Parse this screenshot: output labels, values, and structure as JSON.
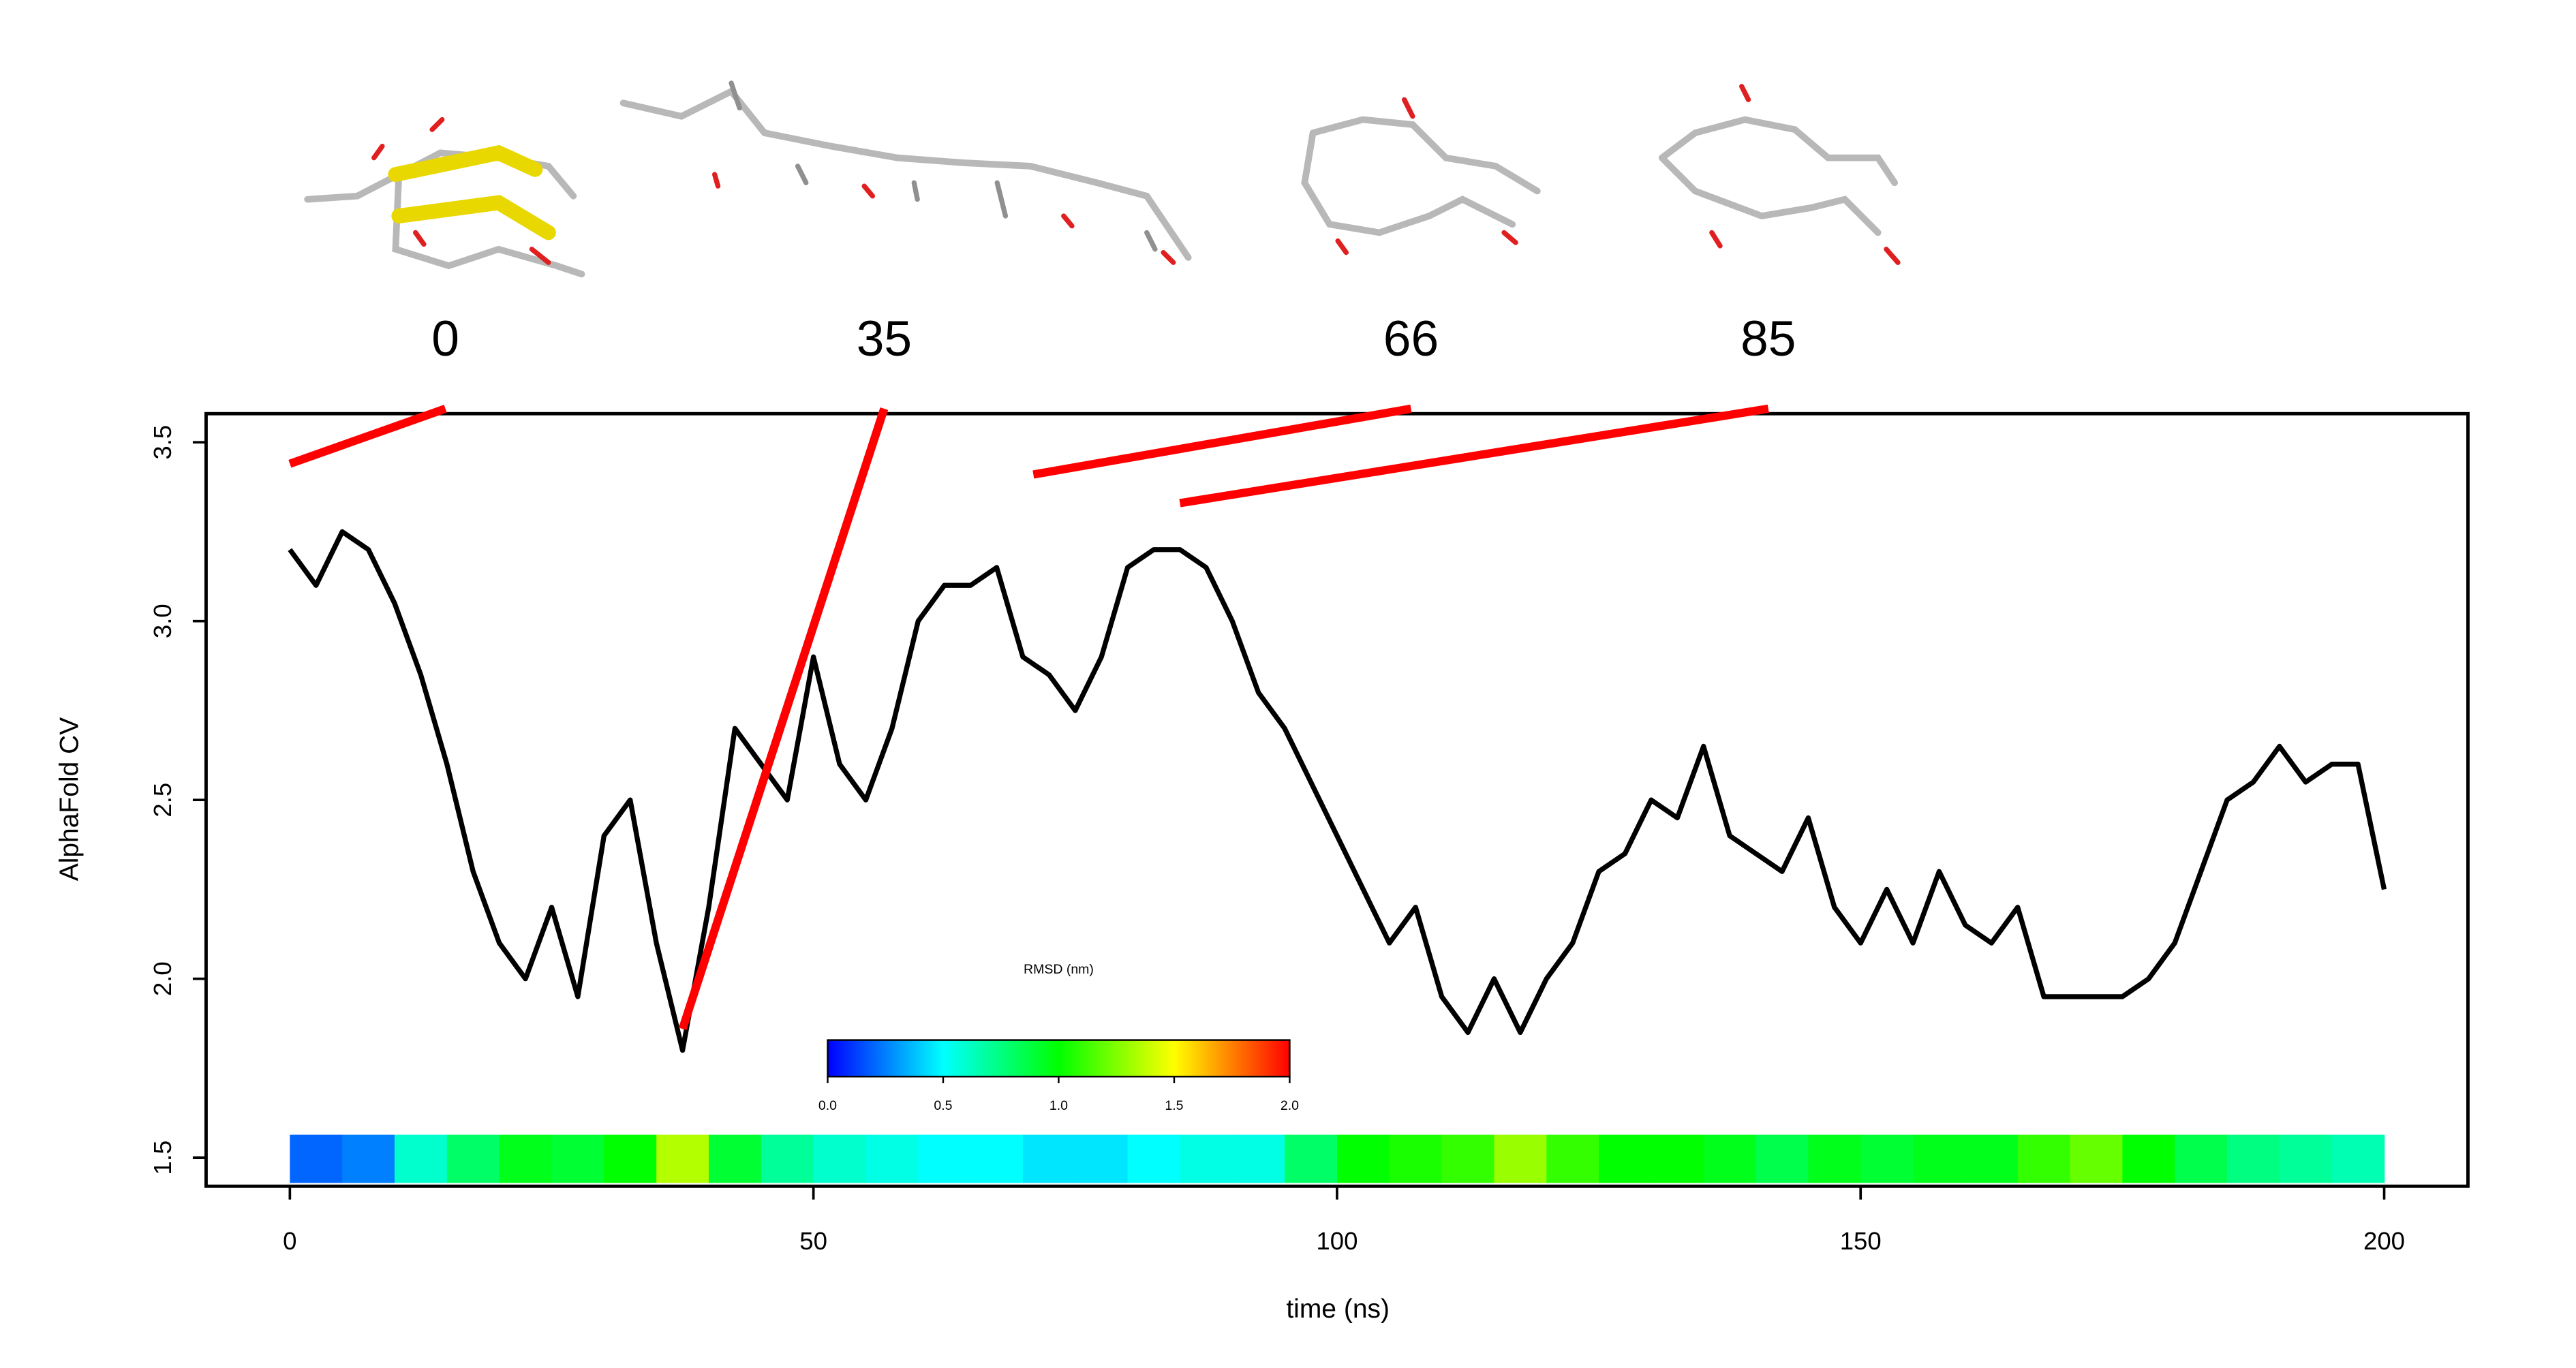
{
  "chart_data": {
    "type": "line",
    "x_label": "time (ns)",
    "y_label": "AlphaFold CV",
    "xlim": [
      -8,
      208
    ],
    "ylim": [
      1.42,
      3.58
    ],
    "xticks": [
      0,
      50,
      100,
      150,
      200
    ],
    "yticks": [
      {
        "value": 1.5,
        "label": "1.5"
      },
      {
        "value": 2.0,
        "label": "2.0"
      },
      {
        "value": 2.5,
        "label": "2.5"
      },
      {
        "value": 3.0,
        "label": "3.0"
      },
      3.5
    ],
    "x": [
      0,
      2.5,
      5,
      7.5,
      10,
      12.5,
      15,
      17.5,
      20,
      22.5,
      25,
      27.5,
      30,
      32.5,
      35,
      37.5,
      40,
      42.5,
      45,
      47.5,
      50,
      52.5,
      55,
      57.5,
      60,
      62.5,
      65,
      67.5,
      70,
      72.5,
      75,
      77.5,
      80,
      82.5,
      85,
      87.5,
      90,
      92.5,
      95,
      97.5,
      100,
      102.5,
      105,
      107.5,
      110,
      112.5,
      115,
      117.5,
      120,
      122.5,
      125,
      127.5,
      130,
      132.5,
      135,
      137.5,
      140,
      142.5,
      145,
      147.5,
      150,
      152.5,
      155,
      157.5,
      160,
      162.5,
      165,
      167.5,
      170,
      172.5,
      175,
      177.5,
      180,
      182.5,
      185,
      187.5,
      190,
      192.5,
      195,
      197.5,
      200
    ],
    "series": [
      {
        "color": "#000000",
        "values": [
          3.2,
          3.1,
          3.25,
          3.2,
          3.05,
          2.85,
          2.6,
          2.3,
          2.1,
          2.0,
          2.2,
          1.95,
          2.4,
          2.5,
          2.1,
          1.8,
          2.2,
          2.7,
          2.6,
          2.5,
          2.9,
          2.6,
          2.5,
          2.7,
          3.0,
          3.1,
          3.1,
          3.15,
          2.9,
          2.85,
          2.75,
          2.9,
          3.15,
          3.2,
          3.2,
          3.15,
          3.0,
          2.8,
          2.7,
          2.55,
          2.4,
          2.25,
          2.1,
          2.2,
          1.95,
          1.85,
          2.0,
          1.85,
          2.0,
          2.1,
          2.3,
          2.35,
          2.5,
          2.45,
          2.65,
          2.4,
          2.35,
          2.3,
          2.45,
          2.2,
          2.1,
          2.25,
          2.1,
          2.3,
          2.15,
          2.1,
          2.2,
          1.95,
          1.95,
          1.95,
          1.95,
          2.0,
          2.1,
          2.3,
          2.5,
          2.55,
          2.65,
          2.55,
          2.6,
          2.6,
          2.25
        ]
      }
    ],
    "rmsd_strip": {
      "bins": [
        0,
        5,
        10,
        15,
        20,
        25,
        30,
        35,
        40,
        45,
        50,
        55,
        60,
        65,
        70,
        75,
        80,
        85,
        90,
        95,
        100,
        105,
        110,
        115,
        120,
        125,
        130,
        135,
        140,
        145,
        150,
        155,
        160,
        165,
        170,
        175,
        180,
        185,
        190,
        195,
        200
      ],
      "values": [
        0.2,
        0.25,
        0.6,
        0.8,
        0.95,
        0.9,
        1.0,
        1.35,
        0.9,
        0.7,
        0.6,
        0.55,
        0.5,
        0.5,
        0.45,
        0.45,
        0.5,
        0.55,
        0.55,
        0.8,
        1.0,
        1.05,
        1.1,
        1.3,
        1.1,
        1.0,
        1.0,
        0.95,
        0.85,
        0.95,
        0.9,
        0.95,
        0.95,
        1.1,
        1.2,
        1.0,
        0.85,
        0.75,
        0.7,
        0.65
      ]
    },
    "colorbar": {
      "title": "RMSD (nm)",
      "lim": [
        0,
        2
      ],
      "ticks": [
        {
          "value": 0,
          "label": "0.0"
        },
        {
          "value": 0.5,
          "label": "0.5"
        },
        {
          "value": 1,
          "label": "1.0"
        },
        {
          "value": 1.5,
          "label": "1.5"
        },
        {
          "value": 2,
          "label": "2.0"
        }
      ],
      "colors": [
        "#0000ff",
        "#00ffff",
        "#00ff00",
        "#ffff00",
        "#ff0000"
      ]
    },
    "annotations": [
      {
        "text": "0",
        "point": [
          0,
          3.44
        ]
      },
      {
        "text": "35",
        "point": [
          37.5,
          1.86
        ]
      },
      {
        "text": "66",
        "point": [
          71,
          3.41
        ]
      },
      {
        "text": "85",
        "point": [
          85,
          3.33
        ]
      }
    ],
    "annotation_color": "#ff0000"
  }
}
